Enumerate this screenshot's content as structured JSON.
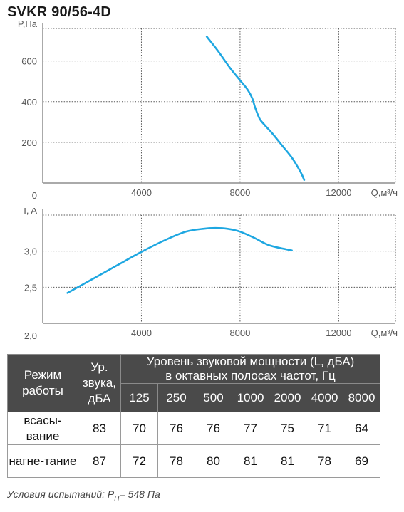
{
  "title": "SVKR 90/56-4D",
  "chart_data": [
    {
      "type": "line",
      "ylabel": "P,Па",
      "xlabel": "Q,м³/ч",
      "xlim": [
        0,
        14300
      ],
      "ylim": [
        0,
        760
      ],
      "xticks": [
        4000,
        8000,
        12000
      ],
      "yticks": [
        0,
        200,
        400,
        600
      ],
      "grid": true,
      "series": [
        {
          "x": [
            6650,
            7100,
            7600,
            8000,
            8300,
            8500,
            8600,
            8800,
            9000,
            9300,
            9700,
            10100,
            10450,
            10600
          ],
          "y": [
            720,
            650,
            565,
            505,
            460,
            415,
            375,
            315,
            285,
            245,
            185,
            125,
            55,
            15
          ]
        }
      ]
    },
    {
      "type": "line",
      "ylabel": "I, A",
      "xlabel": "Q,м³/ч",
      "xlim": [
        0,
        14300
      ],
      "ylim": [
        2.0,
        3.5
      ],
      "xticks": [
        4000,
        8000,
        12000
      ],
      "yticks": [
        2.0,
        2.5,
        3.0
      ],
      "ytick_labels": [
        "2,0",
        "2,5",
        "3,0"
      ],
      "grid": true,
      "series": [
        {
          "x": [
            1000,
            2000,
            3000,
            4000,
            5000,
            5800,
            6500,
            7000,
            7500,
            8000,
            8600,
            9200,
            10100
          ],
          "y": [
            2.42,
            2.61,
            2.8,
            2.99,
            3.16,
            3.27,
            3.31,
            3.32,
            3.31,
            3.27,
            3.18,
            3.08,
            3.01
          ]
        }
      ]
    }
  ],
  "sound_table": {
    "mode_header": "Режим работы",
    "level_header": "Ур. звука, дБА",
    "band_header_line1": "Уровень звуковой мощности (L, дБА)",
    "band_header_line2": "в октавных полосах частот, Гц",
    "freqs": [
      "125",
      "250",
      "500",
      "1000",
      "2000",
      "4000",
      "8000"
    ],
    "rows": [
      {
        "mode": "всасы-вание",
        "level": "83",
        "bands": [
          "70",
          "76",
          "76",
          "77",
          "75",
          "71",
          "64"
        ]
      },
      {
        "mode": "нагне-тание",
        "level": "87",
        "bands": [
          "72",
          "78",
          "80",
          "81",
          "81",
          "78",
          "69"
        ]
      }
    ]
  },
  "footnote": {
    "prefix": "Условия испытаний: P",
    "sub": "H",
    "suffix": "= 548 Па"
  }
}
